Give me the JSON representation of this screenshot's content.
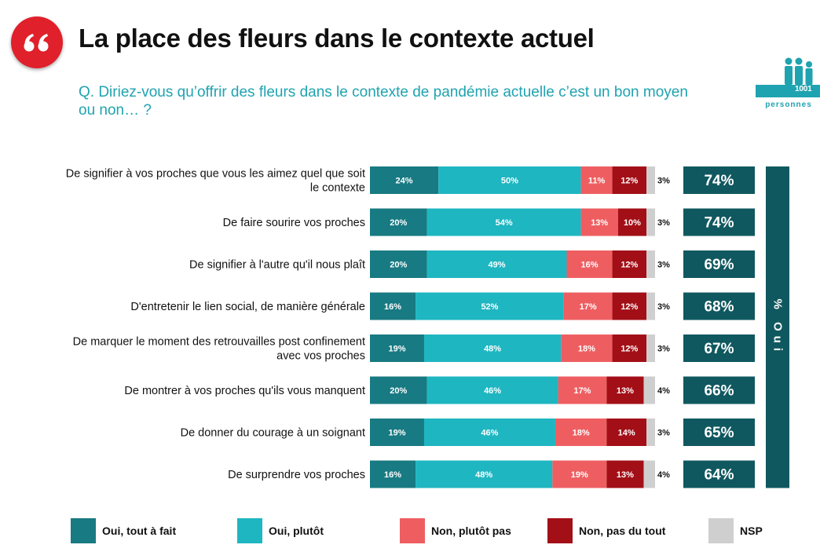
{
  "header": {
    "title": "La place des fleurs dans le contexte actuel",
    "question": "Q. Diriez-vous qu’offrir des fleurs dans le contexte de pandémie actuelle c’est un bon moyen ou non… ?"
  },
  "logo": {
    "number": "1001",
    "subtitle": "personnes",
    "icon": "people-icon"
  },
  "quote_icon": "quote-icon",
  "colors": {
    "tout_a_fait": "#187a82",
    "plutot": "#1eb6c1",
    "plutot_pas": "#ee5e61",
    "pas_du_tout": "#a30f17",
    "nsp": "#cfcfcf",
    "summary": "#10585f",
    "accent_red": "#e0202a"
  },
  "chart_data": {
    "type": "bar",
    "orientation": "horizontal",
    "stacked": true,
    "categories": [
      [
        "De signifier à vos proches que vous les aimez quel que soit",
        "le contexte"
      ],
      [
        "De faire sourire vos proches"
      ],
      [
        "De signifier à l'autre qu'il nous plaît"
      ],
      [
        "D'entretenir le lien social, de manière générale"
      ],
      [
        "De marquer le moment des retrouvailles post confinement",
        "avec vos proches"
      ],
      [
        "De montrer à vos proches qu'ils vous manquent"
      ],
      [
        "De donner du courage à un soignant"
      ],
      [
        "De surprendre vos proches"
      ]
    ],
    "series": [
      {
        "name": "Oui, tout à fait",
        "values": [
          24,
          20,
          20,
          16,
          19,
          20,
          19,
          16
        ]
      },
      {
        "name": "Oui, plutôt",
        "values": [
          50,
          54,
          49,
          52,
          48,
          46,
          46,
          48
        ]
      },
      {
        "name": "Non, plutôt pas",
        "values": [
          11,
          13,
          16,
          17,
          18,
          17,
          18,
          19
        ]
      },
      {
        "name": "Non, pas du tout",
        "values": [
          12,
          10,
          12,
          12,
          12,
          13,
          14,
          13
        ]
      },
      {
        "name": "NSP",
        "values": [
          3,
          3,
          3,
          3,
          3,
          4,
          3,
          4
        ]
      }
    ],
    "summary": {
      "label": "% Oui",
      "values": [
        74,
        74,
        69,
        68,
        67,
        66,
        65,
        64
      ]
    },
    "value_suffix": "%",
    "legend_position": "bottom",
    "grid": false
  }
}
